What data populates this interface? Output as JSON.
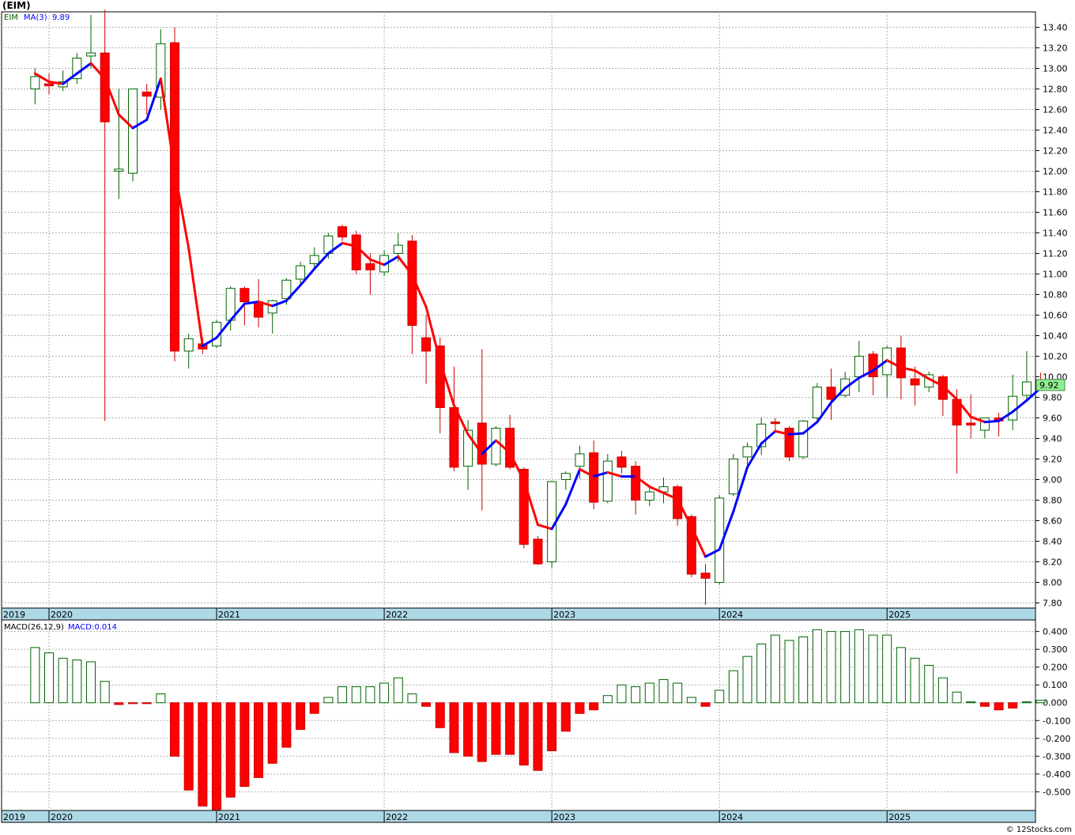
{
  "title": "(EIM)",
  "watermark": "© 12Stocks.com",
  "colors": {
    "up_candle_fill": "#ffffff",
    "up_candle_border": "#006400",
    "down_candle_fill": "#ff0000",
    "down_candle_border": "#cc0000",
    "ma_up": "#0000ff",
    "ma_down": "#ff0000",
    "axis_band": "#add8e6",
    "grid": "#b0b0b0",
    "last_price_badge": "#90ee90"
  },
  "chart_data": [
    {
      "type": "candlestick",
      "panel": "price",
      "legend": {
        "symbol": "EIM",
        "ma_label": "MA(3)",
        "ma_value": "9.89"
      },
      "last_price_label": "9.92",
      "y_ticks": [
        "7.80",
        "8.00",
        "8.20",
        "8.40",
        "8.60",
        "8.80",
        "9.00",
        "9.20",
        "9.40",
        "9.60",
        "9.80",
        "10.00",
        "10.20",
        "10.40",
        "10.60",
        "10.80",
        "11.00",
        "11.20",
        "11.40",
        "11.60",
        "11.80",
        "12.00",
        "12.20",
        "12.40",
        "12.60",
        "12.80",
        "13.00",
        "13.20",
        "13.40"
      ],
      "ylim": [
        7.75,
        13.55
      ],
      "x_labels": [
        "2019",
        "2020",
        "2021",
        "2022",
        "2023",
        "2024",
        "2025"
      ],
      "x_label_months": [
        -1,
        0,
        12,
        24,
        36,
        48,
        60
      ],
      "month_index_note": "0 = Jan 2020, one candle per month",
      "candles": [
        {
          "m": -1,
          "o": 12.8,
          "h": 13.0,
          "l": 12.65,
          "c": 12.92
        },
        {
          "m": 0,
          "o": 12.85,
          "h": 12.95,
          "l": 12.75,
          "c": 12.83
        },
        {
          "m": 1,
          "o": 12.82,
          "h": 12.98,
          "l": 12.78,
          "c": 12.87
        },
        {
          "m": 2,
          "o": 12.9,
          "h": 13.15,
          "l": 12.85,
          "c": 13.1
        },
        {
          "m": 3,
          "o": 13.12,
          "h": 13.52,
          "l": 13.0,
          "c": 13.15
        },
        {
          "m": 4,
          "o": 13.15,
          "h": 13.57,
          "l": 9.57,
          "c": 12.48
        },
        {
          "m": 5,
          "o": 12.0,
          "h": 12.8,
          "l": 11.73,
          "c": 12.02
        },
        {
          "m": 6,
          "o": 11.98,
          "h": 12.8,
          "l": 11.9,
          "c": 12.8
        },
        {
          "m": 7,
          "o": 12.77,
          "h": 12.85,
          "l": 12.55,
          "c": 12.73
        },
        {
          "m": 8,
          "o": 12.72,
          "h": 13.38,
          "l": 12.6,
          "c": 13.24
        },
        {
          "m": 9,
          "o": 13.25,
          "h": 13.4,
          "l": 10.15,
          "c": 10.25
        },
        {
          "m": 10,
          "o": 10.25,
          "h": 10.42,
          "l": 10.08,
          "c": 10.37
        },
        {
          "m": 11,
          "o": 10.32,
          "h": 10.38,
          "l": 10.22,
          "c": 10.27
        },
        {
          "m": 12,
          "o": 10.3,
          "h": 10.55,
          "l": 10.28,
          "c": 10.53
        },
        {
          "m": 13,
          "o": 10.55,
          "h": 10.88,
          "l": 10.45,
          "c": 10.86
        },
        {
          "m": 14,
          "o": 10.86,
          "h": 10.88,
          "l": 10.5,
          "c": 10.73
        },
        {
          "m": 15,
          "o": 10.73,
          "h": 10.95,
          "l": 10.48,
          "c": 10.58
        },
        {
          "m": 16,
          "o": 10.62,
          "h": 10.75,
          "l": 10.42,
          "c": 10.74
        },
        {
          "m": 17,
          "o": 10.76,
          "h": 10.96,
          "l": 10.7,
          "c": 10.94
        },
        {
          "m": 18,
          "o": 10.95,
          "h": 11.12,
          "l": 10.88,
          "c": 11.08
        },
        {
          "m": 19,
          "o": 11.1,
          "h": 11.26,
          "l": 11.05,
          "c": 11.18
        },
        {
          "m": 20,
          "o": 11.2,
          "h": 11.4,
          "l": 11.15,
          "c": 11.37
        },
        {
          "m": 21,
          "o": 11.46,
          "h": 11.48,
          "l": 11.32,
          "c": 11.36
        },
        {
          "m": 22,
          "o": 11.38,
          "h": 11.42,
          "l": 11.0,
          "c": 11.04
        },
        {
          "m": 23,
          "o": 11.1,
          "h": 11.2,
          "l": 10.8,
          "c": 11.04
        },
        {
          "m": 24,
          "o": 11.02,
          "h": 11.23,
          "l": 10.98,
          "c": 11.18
        },
        {
          "m": 25,
          "o": 11.2,
          "h": 11.4,
          "l": 11.12,
          "c": 11.28
        },
        {
          "m": 26,
          "o": 11.32,
          "h": 11.38,
          "l": 10.22,
          "c": 10.5
        },
        {
          "m": 27,
          "o": 10.38,
          "h": 10.6,
          "l": 9.93,
          "c": 10.25
        },
        {
          "m": 28,
          "o": 10.3,
          "h": 10.38,
          "l": 9.45,
          "c": 9.7
        },
        {
          "m": 29,
          "o": 9.7,
          "h": 10.1,
          "l": 9.08,
          "c": 9.12
        },
        {
          "m": 30,
          "o": 9.13,
          "h": 9.58,
          "l": 8.9,
          "c": 9.48
        },
        {
          "m": 31,
          "o": 9.55,
          "h": 10.27,
          "l": 8.7,
          "c": 9.15
        },
        {
          "m": 32,
          "o": 9.15,
          "h": 9.52,
          "l": 9.13,
          "c": 9.5
        },
        {
          "m": 33,
          "o": 9.5,
          "h": 9.63,
          "l": 9.1,
          "c": 9.12
        },
        {
          "m": 34,
          "o": 9.1,
          "h": 9.12,
          "l": 8.33,
          "c": 8.37
        },
        {
          "m": 35,
          "o": 8.42,
          "h": 8.45,
          "l": 8.17,
          "c": 8.18
        },
        {
          "m": 36,
          "o": 8.2,
          "h": 8.98,
          "l": 8.14,
          "c": 8.98
        },
        {
          "m": 37,
          "o": 9.0,
          "h": 9.08,
          "l": 8.9,
          "c": 9.06
        },
        {
          "m": 38,
          "o": 9.13,
          "h": 9.33,
          "l": 9.01,
          "c": 9.25
        },
        {
          "m": 39,
          "o": 9.26,
          "h": 9.38,
          "l": 8.71,
          "c": 8.78
        },
        {
          "m": 40,
          "o": 8.79,
          "h": 9.25,
          "l": 8.77,
          "c": 9.18
        },
        {
          "m": 41,
          "o": 9.22,
          "h": 9.28,
          "l": 9.06,
          "c": 9.12
        },
        {
          "m": 42,
          "o": 9.13,
          "h": 9.18,
          "l": 8.66,
          "c": 8.8
        },
        {
          "m": 43,
          "o": 8.8,
          "h": 8.94,
          "l": 8.74,
          "c": 8.88
        },
        {
          "m": 44,
          "o": 8.88,
          "h": 9.02,
          "l": 8.77,
          "c": 8.93
        },
        {
          "m": 45,
          "o": 8.93,
          "h": 8.95,
          "l": 8.55,
          "c": 8.62
        },
        {
          "m": 46,
          "o": 8.64,
          "h": 8.66,
          "l": 8.05,
          "c": 8.08
        },
        {
          "m": 47,
          "o": 8.09,
          "h": 8.18,
          "l": 7.78,
          "c": 8.04
        },
        {
          "m": 48,
          "o": 8.0,
          "h": 8.85,
          "l": 7.98,
          "c": 8.82
        },
        {
          "m": 49,
          "o": 8.86,
          "h": 9.25,
          "l": 8.84,
          "c": 9.2
        },
        {
          "m": 50,
          "o": 9.22,
          "h": 9.36,
          "l": 9.14,
          "c": 9.32
        },
        {
          "m": 51,
          "o": 9.32,
          "h": 9.6,
          "l": 9.24,
          "c": 9.54
        },
        {
          "m": 52,
          "o": 9.56,
          "h": 9.6,
          "l": 9.48,
          "c": 9.55
        },
        {
          "m": 53,
          "o": 9.5,
          "h": 9.52,
          "l": 9.18,
          "c": 9.22
        },
        {
          "m": 54,
          "o": 9.22,
          "h": 9.58,
          "l": 9.2,
          "c": 9.57
        },
        {
          "m": 55,
          "o": 9.6,
          "h": 9.94,
          "l": 9.55,
          "c": 9.9
        },
        {
          "m": 56,
          "o": 9.9,
          "h": 10.08,
          "l": 9.58,
          "c": 9.78
        },
        {
          "m": 57,
          "o": 9.82,
          "h": 10.05,
          "l": 9.8,
          "c": 9.98
        },
        {
          "m": 58,
          "o": 10.0,
          "h": 10.35,
          "l": 9.85,
          "c": 10.2
        },
        {
          "m": 59,
          "o": 10.22,
          "h": 10.25,
          "l": 9.82,
          "c": 10.0
        },
        {
          "m": 60,
          "o": 10.02,
          "h": 10.3,
          "l": 9.8,
          "c": 10.28
        },
        {
          "m": 61,
          "o": 10.28,
          "h": 10.4,
          "l": 9.78,
          "c": 9.99
        },
        {
          "m": 62,
          "o": 9.98,
          "h": 10.1,
          "l": 9.72,
          "c": 9.92
        },
        {
          "m": 63,
          "o": 9.9,
          "h": 10.05,
          "l": 9.85,
          "c": 10.02
        },
        {
          "m": 64,
          "o": 10.0,
          "h": 10.02,
          "l": 9.62,
          "c": 9.78
        },
        {
          "m": 65,
          "o": 9.78,
          "h": 9.88,
          "l": 9.06,
          "c": 9.53
        },
        {
          "m": 66,
          "o": 9.55,
          "h": 9.83,
          "l": 9.4,
          "c": 9.53
        },
        {
          "m": 67,
          "o": 9.48,
          "h": 9.6,
          "l": 9.4,
          "c": 9.6
        },
        {
          "m": 68,
          "o": 9.6,
          "h": 9.65,
          "l": 9.42,
          "c": 9.57
        },
        {
          "m": 69,
          "o": 9.58,
          "h": 10.02,
          "l": 9.48,
          "c": 9.81
        },
        {
          "m": 70,
          "o": 9.82,
          "h": 10.25,
          "l": 9.76,
          "c": 9.95
        },
        {
          "m": 71,
          "o": 9.97,
          "h": 10.04,
          "l": 9.89,
          "c": 9.92
        }
      ],
      "ma3": [
        {
          "m": -1,
          "v": 12.95
        },
        {
          "m": 0,
          "v": 12.87
        },
        {
          "m": 1,
          "v": 12.85
        },
        {
          "m": 2,
          "v": 12.95
        },
        {
          "m": 3,
          "v": 13.05
        },
        {
          "m": 4,
          "v": 12.9
        },
        {
          "m": 5,
          "v": 12.55
        },
        {
          "m": 6,
          "v": 12.42
        },
        {
          "m": 7,
          "v": 12.5
        },
        {
          "m": 8,
          "v": 12.9
        },
        {
          "m": 9,
          "v": 12.0
        },
        {
          "m": 10,
          "v": 11.25
        },
        {
          "m": 11,
          "v": 10.3
        },
        {
          "m": 12,
          "v": 10.38
        },
        {
          "m": 13,
          "v": 10.55
        },
        {
          "m": 14,
          "v": 10.71
        },
        {
          "m": 15,
          "v": 10.73
        },
        {
          "m": 16,
          "v": 10.69
        },
        {
          "m": 17,
          "v": 10.74
        },
        {
          "m": 18,
          "v": 10.89
        },
        {
          "m": 19,
          "v": 11.05
        },
        {
          "m": 20,
          "v": 11.2
        },
        {
          "m": 21,
          "v": 11.3
        },
        {
          "m": 22,
          "v": 11.27
        },
        {
          "m": 23,
          "v": 11.14
        },
        {
          "m": 24,
          "v": 11.09
        },
        {
          "m": 25,
          "v": 11.17
        },
        {
          "m": 26,
          "v": 10.99
        },
        {
          "m": 27,
          "v": 10.68
        },
        {
          "m": 28,
          "v": 10.15
        },
        {
          "m": 29,
          "v": 9.72
        },
        {
          "m": 30,
          "v": 9.44
        },
        {
          "m": 31,
          "v": 9.25
        },
        {
          "m": 32,
          "v": 9.38
        },
        {
          "m": 33,
          "v": 9.26
        },
        {
          "m": 34,
          "v": 8.99
        },
        {
          "m": 35,
          "v": 8.56
        },
        {
          "m": 36,
          "v": 8.52
        },
        {
          "m": 37,
          "v": 8.76
        },
        {
          "m": 38,
          "v": 9.1
        },
        {
          "m": 39,
          "v": 9.03
        },
        {
          "m": 40,
          "v": 9.07
        },
        {
          "m": 41,
          "v": 9.03
        },
        {
          "m": 42,
          "v": 9.03
        },
        {
          "m": 43,
          "v": 8.93
        },
        {
          "m": 44,
          "v": 8.87
        },
        {
          "m": 45,
          "v": 8.81
        },
        {
          "m": 46,
          "v": 8.54
        },
        {
          "m": 47,
          "v": 8.25
        },
        {
          "m": 48,
          "v": 8.32
        },
        {
          "m": 49,
          "v": 8.69
        },
        {
          "m": 50,
          "v": 9.12
        },
        {
          "m": 51,
          "v": 9.35
        },
        {
          "m": 52,
          "v": 9.47
        },
        {
          "m": 53,
          "v": 9.44
        },
        {
          "m": 54,
          "v": 9.45
        },
        {
          "m": 55,
          "v": 9.56
        },
        {
          "m": 56,
          "v": 9.75
        },
        {
          "m": 57,
          "v": 9.89
        },
        {
          "m": 58,
          "v": 9.99
        },
        {
          "m": 59,
          "v": 10.06
        },
        {
          "m": 60,
          "v": 10.16
        },
        {
          "m": 61,
          "v": 10.09
        },
        {
          "m": 62,
          "v": 10.06
        },
        {
          "m": 63,
          "v": 9.98
        },
        {
          "m": 64,
          "v": 9.91
        },
        {
          "m": 65,
          "v": 9.78
        },
        {
          "m": 66,
          "v": 9.61
        },
        {
          "m": 67,
          "v": 9.56
        },
        {
          "m": 68,
          "v": 9.57
        },
        {
          "m": 69,
          "v": 9.66
        },
        {
          "m": 70,
          "v": 9.77
        },
        {
          "m": 71,
          "v": 9.89
        }
      ]
    },
    {
      "type": "bar",
      "panel": "macd",
      "legend": {
        "label": "MACD(26,12,9)",
        "value_label": "MACD:0.014"
      },
      "y_ticks": [
        "-0.500",
        "-0.400",
        "-0.300",
        "-0.200",
        "-0.100",
        "0.000",
        "0.100",
        "0.200",
        "0.300",
        "0.400"
      ],
      "ylim": [
        -0.605,
        0.465
      ],
      "x_labels": [
        "2019",
        "2020",
        "2021",
        "2022",
        "2023",
        "2024",
        "2025"
      ],
      "bars": [
        {
          "m": -1,
          "v": 0.31
        },
        {
          "m": 0,
          "v": 0.28
        },
        {
          "m": 1,
          "v": 0.25
        },
        {
          "m": 2,
          "v": 0.24
        },
        {
          "m": 3,
          "v": 0.23
        },
        {
          "m": 4,
          "v": 0.12
        },
        {
          "m": 5,
          "v": -0.01
        },
        {
          "m": 6,
          "v": -0.005
        },
        {
          "m": 7,
          "v": -0.005
        },
        {
          "m": 8,
          "v": 0.05
        },
        {
          "m": 9,
          "v": -0.3
        },
        {
          "m": 10,
          "v": -0.49
        },
        {
          "m": 11,
          "v": -0.58
        },
        {
          "m": 12,
          "v": -0.6
        },
        {
          "m": 13,
          "v": -0.53
        },
        {
          "m": 14,
          "v": -0.47
        },
        {
          "m": 15,
          "v": -0.42
        },
        {
          "m": 16,
          "v": -0.34
        },
        {
          "m": 17,
          "v": -0.25
        },
        {
          "m": 18,
          "v": -0.15
        },
        {
          "m": 19,
          "v": -0.06
        },
        {
          "m": 20,
          "v": 0.03
        },
        {
          "m": 21,
          "v": 0.09
        },
        {
          "m": 22,
          "v": 0.09
        },
        {
          "m": 23,
          "v": 0.09
        },
        {
          "m": 24,
          "v": 0.11
        },
        {
          "m": 25,
          "v": 0.14
        },
        {
          "m": 26,
          "v": 0.05
        },
        {
          "m": 27,
          "v": -0.02
        },
        {
          "m": 28,
          "v": -0.14
        },
        {
          "m": 29,
          "v": -0.28
        },
        {
          "m": 30,
          "v": -0.3
        },
        {
          "m": 31,
          "v": -0.33
        },
        {
          "m": 32,
          "v": -0.29
        },
        {
          "m": 33,
          "v": -0.29
        },
        {
          "m": 34,
          "v": -0.35
        },
        {
          "m": 35,
          "v": -0.38
        },
        {
          "m": 36,
          "v": -0.27
        },
        {
          "m": 37,
          "v": -0.16
        },
        {
          "m": 38,
          "v": -0.06
        },
        {
          "m": 39,
          "v": -0.04
        },
        {
          "m": 40,
          "v": 0.04
        },
        {
          "m": 41,
          "v": 0.1
        },
        {
          "m": 42,
          "v": 0.09
        },
        {
          "m": 43,
          "v": 0.11
        },
        {
          "m": 44,
          "v": 0.13
        },
        {
          "m": 45,
          "v": 0.11
        },
        {
          "m": 46,
          "v": 0.03
        },
        {
          "m": 47,
          "v": -0.02
        },
        {
          "m": 48,
          "v": 0.07
        },
        {
          "m": 49,
          "v": 0.18
        },
        {
          "m": 50,
          "v": 0.26
        },
        {
          "m": 51,
          "v": 0.33
        },
        {
          "m": 52,
          "v": 0.38
        },
        {
          "m": 53,
          "v": 0.35
        },
        {
          "m": 54,
          "v": 0.37
        },
        {
          "m": 55,
          "v": 0.41
        },
        {
          "m": 56,
          "v": 0.4
        },
        {
          "m": 57,
          "v": 0.4
        },
        {
          "m": 58,
          "v": 0.41
        },
        {
          "m": 59,
          "v": 0.38
        },
        {
          "m": 60,
          "v": 0.38
        },
        {
          "m": 61,
          "v": 0.31
        },
        {
          "m": 62,
          "v": 0.25
        },
        {
          "m": 63,
          "v": 0.21
        },
        {
          "m": 64,
          "v": 0.14
        },
        {
          "m": 65,
          "v": 0.06
        },
        {
          "m": 66,
          "v": 0.005
        },
        {
          "m": 67,
          "v": -0.02
        },
        {
          "m": 68,
          "v": -0.04
        },
        {
          "m": 69,
          "v": -0.03
        },
        {
          "m": 70,
          "v": 0.005
        },
        {
          "m": 71,
          "v": 0.014
        }
      ]
    }
  ]
}
